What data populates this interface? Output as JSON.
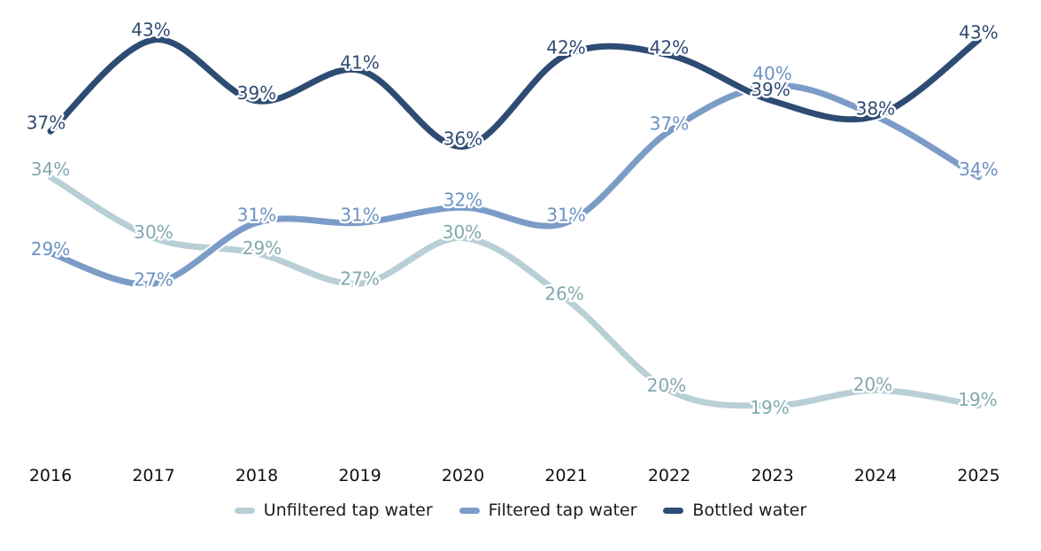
{
  "chart_data": {
    "type": "line",
    "title": "",
    "xlabel": "",
    "ylabel": "",
    "x": [
      "2016",
      "2017",
      "2018",
      "2019",
      "2020",
      "2021",
      "2022",
      "2023",
      "2024",
      "2025"
    ],
    "series": [
      {
        "name": "Unfiltered tap water",
        "color": "#b9cfd6",
        "label_color": "#7fa9ae",
        "values": [
          34,
          30,
          29,
          27,
          30,
          26,
          20,
          19,
          20,
          19
        ],
        "labels": [
          "34%",
          "30%",
          "29%",
          "27%",
          "30%",
          "26%",
          "20%",
          "19%",
          "20%",
          "19%"
        ]
      },
      {
        "name": "Filtered tap water",
        "color": "#7c9cc8",
        "label_color": "#6c92c4",
        "values": [
          29,
          27,
          31,
          31,
          32,
          31,
          37,
          40,
          38,
          34
        ],
        "labels": [
          "29%",
          "27%",
          "31%",
          "31%",
          "32%",
          "31%",
          "37%",
          "40%",
          null,
          "34%"
        ]
      },
      {
        "name": "Bottled water",
        "color": "#2e4b73",
        "label_color": "#2e4b73",
        "values": [
          37,
          43,
          39,
          41,
          36,
          42,
          42,
          39,
          38,
          43
        ],
        "labels": [
          "37%",
          "43%",
          "39%",
          "41%",
          "36%",
          "42%",
          "42%",
          "39%",
          "38%",
          "43%"
        ]
      }
    ],
    "ylim": [
      15,
      46
    ],
    "grid": "off",
    "legend_position": "bottom",
    "background_color": "#ffffff",
    "tick_color": "#111111"
  }
}
